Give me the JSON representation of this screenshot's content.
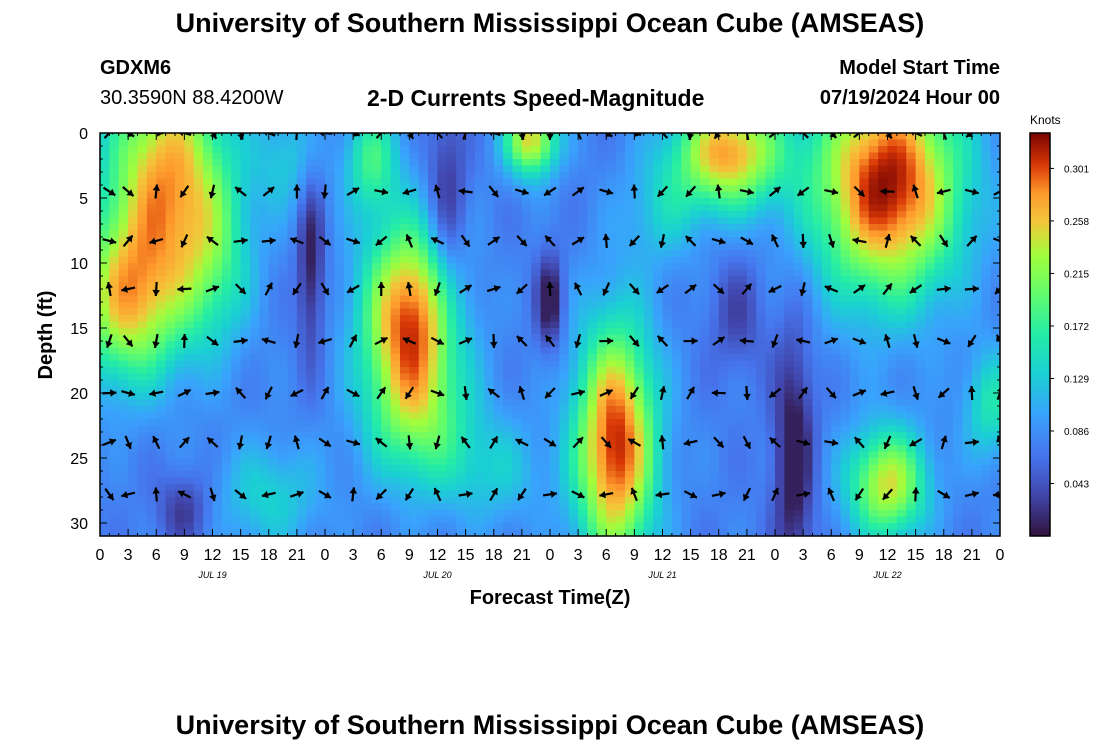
{
  "header": {
    "title": "University of Southern Mississippi Ocean Cube (AMSEAS)",
    "station_id": "GDXM6",
    "coordinates": "30.3590N  88.4200W",
    "chart_title": "2-D Currents Speed-Magnitude",
    "model_start_label": "Model Start Time",
    "model_start_value": "07/19/2024 Hour 00"
  },
  "footer": {
    "title": "University of Southern Mississippi Ocean Cube (AMSEAS)"
  },
  "chart_data": {
    "type": "heatmap",
    "title": "2-D Currents Speed-Magnitude",
    "xlabel": "Forecast Time(Z)",
    "ylabel": "Depth (ft)",
    "x_range_hours": [
      0,
      96
    ],
    "y_range_ft": [
      0,
      31
    ],
    "x_ticks": [
      {
        "hour": 0,
        "label": "0"
      },
      {
        "hour": 3,
        "label": "3"
      },
      {
        "hour": 6,
        "label": "6"
      },
      {
        "hour": 9,
        "label": "9"
      },
      {
        "hour": 12,
        "label": "12"
      },
      {
        "hour": 15,
        "label": "15"
      },
      {
        "hour": 18,
        "label": "18"
      },
      {
        "hour": 21,
        "label": "21"
      },
      {
        "hour": 24,
        "label": "0"
      },
      {
        "hour": 27,
        "label": "3"
      },
      {
        "hour": 30,
        "label": "6"
      },
      {
        "hour": 33,
        "label": "9"
      },
      {
        "hour": 36,
        "label": "12"
      },
      {
        "hour": 39,
        "label": "15"
      },
      {
        "hour": 42,
        "label": "18"
      },
      {
        "hour": 45,
        "label": "21"
      },
      {
        "hour": 48,
        "label": "0"
      },
      {
        "hour": 51,
        "label": "3"
      },
      {
        "hour": 54,
        "label": "6"
      },
      {
        "hour": 57,
        "label": "9"
      },
      {
        "hour": 60,
        "label": "12"
      },
      {
        "hour": 63,
        "label": "15"
      },
      {
        "hour": 66,
        "label": "18"
      },
      {
        "hour": 69,
        "label": "21"
      },
      {
        "hour": 72,
        "label": "0"
      },
      {
        "hour": 75,
        "label": "3"
      },
      {
        "hour": 78,
        "label": "6"
      },
      {
        "hour": 81,
        "label": "9"
      },
      {
        "hour": 84,
        "label": "12"
      },
      {
        "hour": 87,
        "label": "15"
      },
      {
        "hour": 90,
        "label": "18"
      },
      {
        "hour": 93,
        "label": "21"
      },
      {
        "hour": 96,
        "label": "0"
      }
    ],
    "date_labels": [
      {
        "hour": 12,
        "label": "JUL 19"
      },
      {
        "hour": 36,
        "label": "JUL 20"
      },
      {
        "hour": 60,
        "label": "JUL 21"
      },
      {
        "hour": 84,
        "label": "JUL 22"
      }
    ],
    "y_ticks": [
      0,
      5,
      10,
      15,
      20,
      25,
      30
    ],
    "colorbar": {
      "label": "Knots",
      "min": 0.0,
      "max": 0.33,
      "ticks": [
        0.301,
        0.258,
        0.215,
        0.172,
        0.129,
        0.086,
        0.043
      ]
    },
    "arrow_times": [
      1,
      3,
      6,
      9,
      12,
      15,
      18,
      21,
      24,
      27,
      30,
      33,
      36,
      39,
      42,
      45,
      48,
      51,
      54,
      57,
      60,
      63,
      66,
      69,
      72,
      75,
      78,
      81,
      84,
      87,
      90,
      93,
      96
    ],
    "arrow_depths": [
      0,
      4.5,
      8.3,
      12,
      16,
      20,
      23.8,
      27.8
    ],
    "speed_blobs": [
      {
        "t": 7,
        "d": 3,
        "st": 4.5,
        "sd": 6,
        "a": 0.19
      },
      {
        "t": 3,
        "d": 13,
        "st": 4,
        "sd": 4.5,
        "a": 0.17
      },
      {
        "t": 12,
        "d": 10,
        "st": 3,
        "sd": 5,
        "a": 0.08
      },
      {
        "t": 33,
        "d": 14,
        "st": 3.5,
        "sd": 5,
        "a": 0.22
      },
      {
        "t": 34,
        "d": 22,
        "st": 4,
        "sd": 4,
        "a": 0.1
      },
      {
        "t": 46,
        "d": 0.5,
        "st": 2,
        "sd": 2,
        "a": 0.18
      },
      {
        "t": 55,
        "d": 24,
        "st": 3,
        "sd": 6.5,
        "a": 0.24
      },
      {
        "t": 67,
        "d": 1.5,
        "st": 4,
        "sd": 3,
        "a": 0.2
      },
      {
        "t": 84,
        "d": 4,
        "st": 5.5,
        "sd": 6,
        "a": 0.25
      },
      {
        "t": 84,
        "d": 27,
        "st": 3,
        "sd": 3,
        "a": 0.17
      },
      {
        "t": 29,
        "d": 2,
        "st": 2,
        "sd": 3,
        "a": 0.1
      },
      {
        "t": 20,
        "d": 2,
        "st": 2.5,
        "sd": 3,
        "a": 0.05
      },
      {
        "t": 60,
        "d": 6,
        "st": 3,
        "sd": 3,
        "a": 0.05
      },
      {
        "t": 95,
        "d": 21,
        "st": 2,
        "sd": 3,
        "a": 0.08
      },
      {
        "t": 18,
        "d": 28,
        "st": 4,
        "sd": 3,
        "a": 0.06
      },
      {
        "t": 42,
        "d": 26,
        "st": 4,
        "sd": 3,
        "a": 0.05
      }
    ],
    "slow_spots": [
      {
        "t": 22.5,
        "d": 10,
        "st": 1,
        "sd": 5,
        "a": 0.07
      },
      {
        "t": 37,
        "d": 6,
        "st": 1.5,
        "sd": 6,
        "a": 0.06
      },
      {
        "t": 48,
        "d": 13,
        "st": 1,
        "sd": 2.5,
        "a": 0.08
      },
      {
        "t": 74,
        "d": 25,
        "st": 1.5,
        "sd": 7,
        "a": 0.08
      },
      {
        "t": 9,
        "d": 29,
        "st": 2,
        "sd": 2,
        "a": 0.05
      },
      {
        "t": 68,
        "d": 14,
        "st": 2,
        "sd": 3,
        "a": 0.04
      }
    ]
  }
}
